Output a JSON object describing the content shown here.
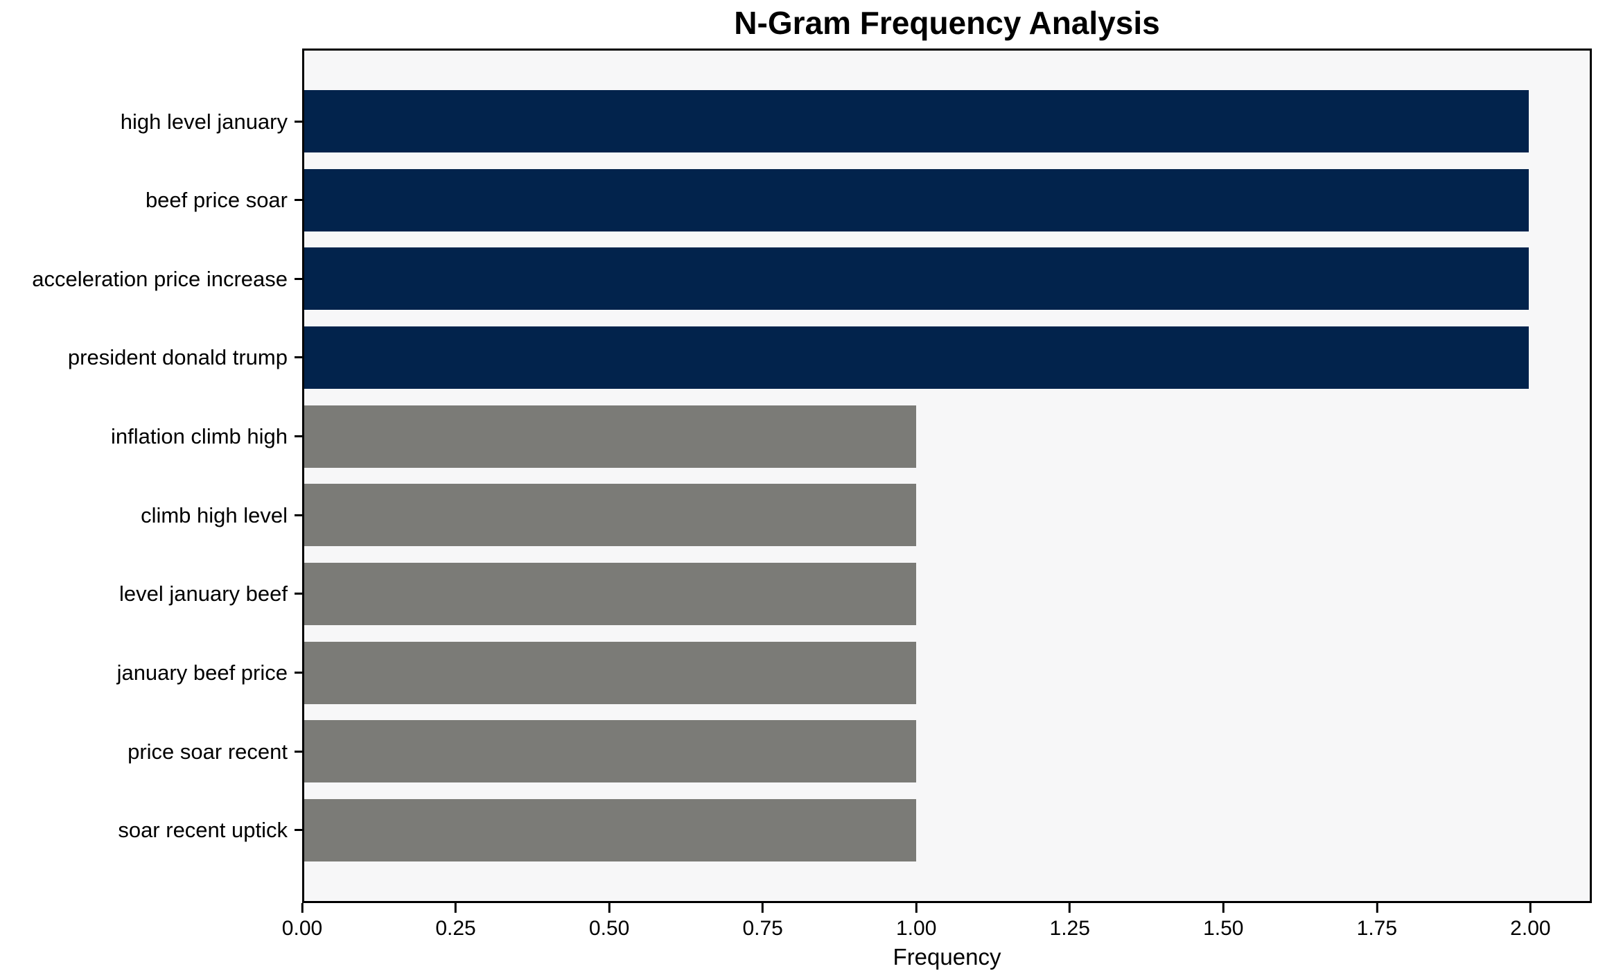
{
  "chart_data": {
    "type": "bar",
    "orientation": "horizontal",
    "title": "N-Gram Frequency Analysis",
    "xlabel": "Frequency",
    "ylabel": "",
    "categories": [
      "high level january",
      "beef price soar",
      "acceleration price increase",
      "president donald trump",
      "inflation climb high",
      "climb high level",
      "level january beef",
      "january beef price",
      "price soar recent",
      "soar recent uptick"
    ],
    "values": [
      2,
      2,
      2,
      2,
      1,
      1,
      1,
      1,
      1,
      1
    ],
    "bar_colors": [
      "#02234c",
      "#02234c",
      "#02234c",
      "#02234c",
      "#7b7b77",
      "#7b7b77",
      "#7b7b77",
      "#7b7b77",
      "#7b7b77",
      "#7b7b77"
    ],
    "xlim": [
      0,
      2.1
    ],
    "xticks": [
      "0.00",
      "0.25",
      "0.50",
      "0.75",
      "1.00",
      "1.25",
      "1.50",
      "1.75",
      "2.00"
    ],
    "grid": false,
    "legend": null,
    "colors": {
      "high_frequency_bar": "#02234c",
      "low_frequency_bar": "#7b7b77",
      "plot_background": "#f7f7f8",
      "figure_background": "#ffffff",
      "spine": "#000000",
      "text": "#000000"
    }
  }
}
